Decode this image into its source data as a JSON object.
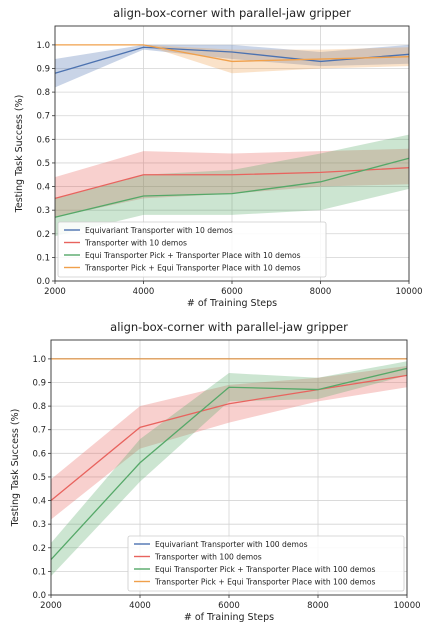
{
  "chart_data": [
    {
      "type": "line",
      "title": "align-box-corner with parallel-jaw gripper",
      "xlabel": "# of Training Steps",
      "ylabel": "Testing Task Success (%)",
      "x": [
        2000,
        4000,
        6000,
        8000,
        10000
      ],
      "xticks": [
        "2000",
        "4000",
        "6000",
        "8000",
        "10000"
      ],
      "yticks": [
        "0.0",
        "0.1",
        "0.2",
        "0.3",
        "0.4",
        "0.5",
        "0.6",
        "0.7",
        "0.8",
        "0.9",
        "1.0"
      ],
      "xlim": [
        2000,
        10000
      ],
      "ylim": [
        0,
        1.08
      ],
      "grid": true,
      "legend": "lower-right",
      "series": [
        {
          "name": "Equivariant Transporter with 10 demos",
          "color": "#4c72b0",
          "values": [
            0.88,
            0.99,
            0.97,
            0.93,
            0.96
          ],
          "lower": [
            0.82,
            0.98,
            0.94,
            0.91,
            0.92
          ],
          "upper": [
            0.94,
            1.0,
            1.0,
            0.97,
            1.0
          ]
        },
        {
          "name": "Transporter with 10 demos",
          "color": "#e8635e",
          "values": [
            0.35,
            0.45,
            0.45,
            0.46,
            0.48
          ],
          "lower": [
            0.27,
            0.35,
            0.37,
            0.4,
            0.41
          ],
          "upper": [
            0.44,
            0.55,
            0.54,
            0.55,
            0.56
          ]
        },
        {
          "name": "Equi Transporter Pick + Transporter Place with 10 demos",
          "color": "#55a868",
          "values": [
            0.27,
            0.36,
            0.37,
            0.42,
            0.52
          ],
          "lower": [
            0.19,
            0.28,
            0.28,
            0.3,
            0.39
          ],
          "upper": [
            0.35,
            0.45,
            0.47,
            0.54,
            0.62
          ]
        },
        {
          "name": "Transporter Pick + Equi Transporter Place with 10 demos",
          "color": "#f0a04b",
          "values": [
            1.0,
            1.0,
            0.93,
            0.94,
            0.95
          ],
          "lower": [
            1.0,
            1.0,
            0.88,
            0.9,
            0.91
          ],
          "upper": [
            1.0,
            1.0,
            0.98,
            0.98,
            0.99
          ]
        }
      ]
    },
    {
      "type": "line",
      "title": "align-box-corner with parallel-jaw gripper",
      "xlabel": "# of Training Steps",
      "ylabel": "Testing Task Success (%)",
      "x": [
        2000,
        4000,
        6000,
        8000,
        10000
      ],
      "xticks": [
        "2000",
        "4000",
        "6000",
        "8000",
        "10000"
      ],
      "yticks": [
        "0.0",
        "0.1",
        "0.2",
        "0.3",
        "0.4",
        "0.5",
        "0.6",
        "0.7",
        "0.8",
        "0.9",
        "1.0"
      ],
      "xlim": [
        2000,
        10000
      ],
      "ylim": [
        0,
        1.08
      ],
      "grid": true,
      "legend": "lower-right",
      "series": [
        {
          "name": "Equivariant Transporter with 100 demos",
          "color": "#4c72b0",
          "values": [
            1.0,
            1.0,
            1.0,
            1.0,
            1.0
          ],
          "lower": [
            1.0,
            1.0,
            1.0,
            1.0,
            1.0
          ],
          "upper": [
            1.0,
            1.0,
            1.0,
            1.0,
            1.0
          ]
        },
        {
          "name": "Transporter with 100 demos",
          "color": "#e8635e",
          "values": [
            0.4,
            0.71,
            0.81,
            0.87,
            0.93
          ],
          "lower": [
            0.32,
            0.62,
            0.73,
            0.82,
            0.88
          ],
          "upper": [
            0.49,
            0.8,
            0.89,
            0.92,
            0.97
          ]
        },
        {
          "name": "Equi Transporter Pick + Transporter Place with 100 demos",
          "color": "#55a868",
          "values": [
            0.15,
            0.56,
            0.88,
            0.87,
            0.96
          ],
          "lower": [
            0.08,
            0.48,
            0.82,
            0.83,
            0.93
          ],
          "upper": [
            0.22,
            0.66,
            0.94,
            0.92,
            0.99
          ]
        },
        {
          "name": "Transporter Pick + Equi Transporter Place with 100 demos",
          "color": "#f0a04b",
          "values": [
            1.0,
            1.0,
            1.0,
            1.0,
            1.0
          ],
          "lower": [
            1.0,
            1.0,
            1.0,
            1.0,
            1.0
          ],
          "upper": [
            1.0,
            1.0,
            1.0,
            1.0,
            1.0
          ]
        }
      ]
    }
  ]
}
